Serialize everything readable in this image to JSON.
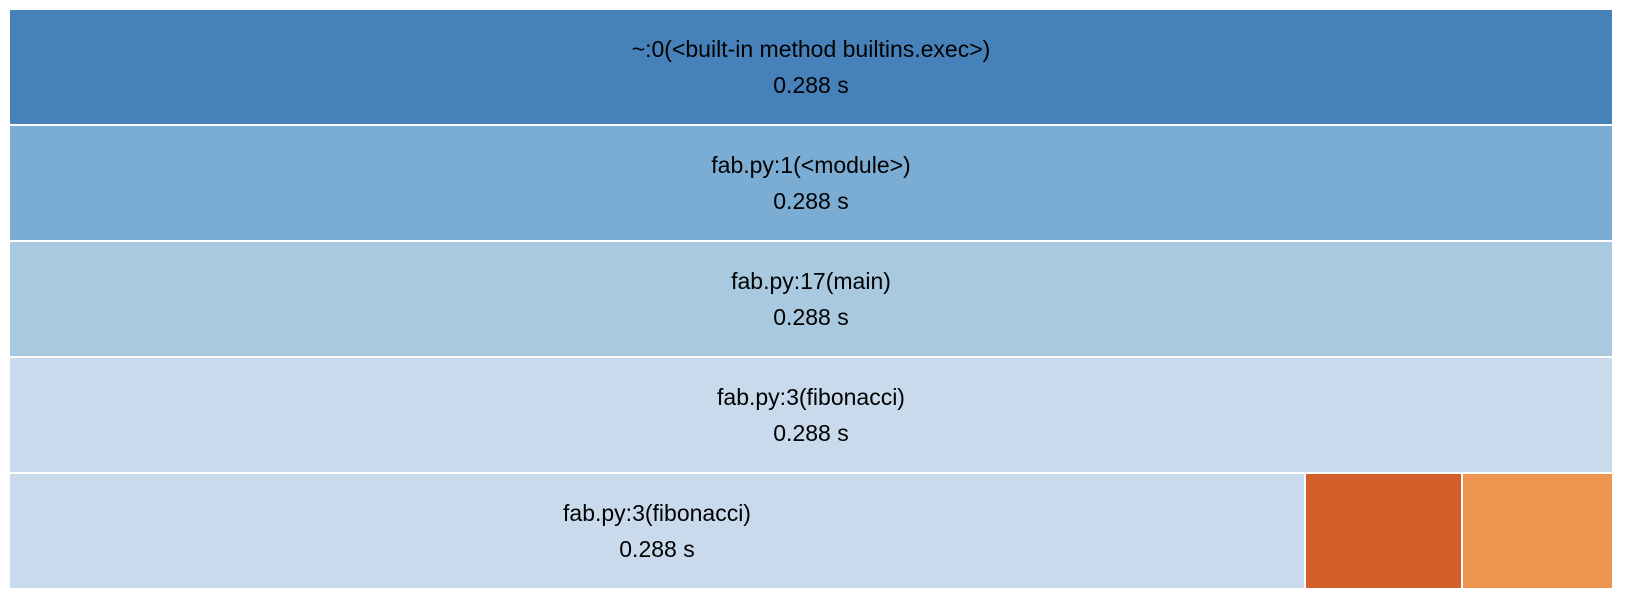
{
  "icicle": {
    "rows": [
      {
        "label": "~:0(<built-in method builtins.exec>)",
        "time": "0.288 s"
      },
      {
        "label": "fab.py:1(<module>)",
        "time": "0.288 s"
      },
      {
        "label": "fab.py:17(main)",
        "time": "0.288 s"
      },
      {
        "label": "fab.py:3(fibonacci)",
        "time": "0.288 s"
      },
      {
        "label": "fab.py:3(fibonacci)",
        "time": "0.288 s"
      }
    ]
  }
}
